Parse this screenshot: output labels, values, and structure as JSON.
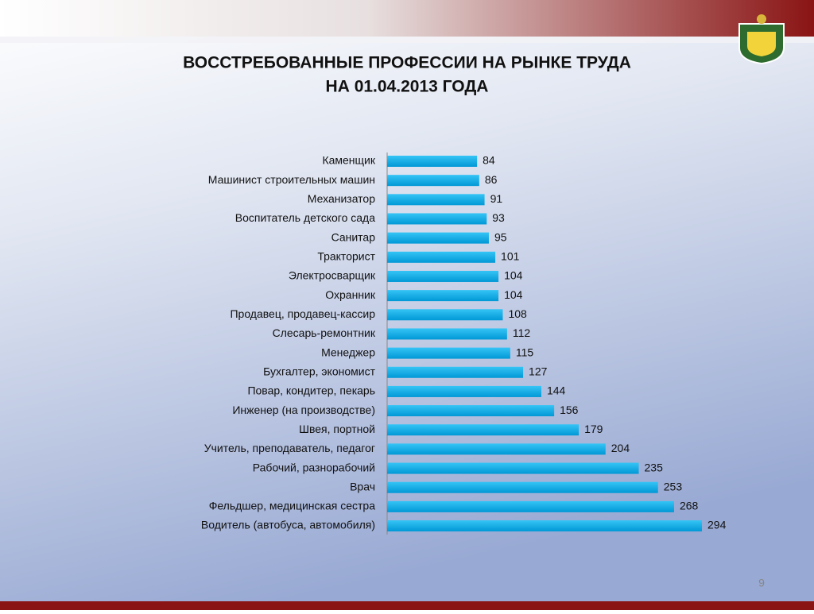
{
  "chart_data": {
    "type": "barh",
    "title": [
      "ВОССТРЕБОВАННЫЕ ПРОФЕССИИ НА РЫНКЕ ТРУДА",
      "НА 01.04.2013 ГОДА"
    ],
    "categories": [
      "Каменщик",
      "Машинист строительных машин",
      "Механизатор",
      "Воспитатель детского сада",
      "Санитар",
      "Тракторист",
      "Электросварщик",
      "Охранник",
      "Продавец, продавец-кассир",
      "Слесарь-ремонтник",
      "Менеджер",
      "Бухгалтер, экономист",
      "Повар, кондитер, пекарь",
      "Инженер (на производстве)",
      "Швея, портной",
      "Учитель, преподаватель, педагог",
      "Рабочий, разнорабочий",
      "Врач",
      "Фельдшер, медицинская сестра",
      "Водитель (автобуса, автомобиля)"
    ],
    "values": [
      84,
      86,
      91,
      93,
      95,
      101,
      104,
      104,
      108,
      112,
      115,
      127,
      144,
      156,
      179,
      204,
      235,
      253,
      268,
      294
    ],
    "color": "#00b0f0"
  },
  "page_number": "9"
}
